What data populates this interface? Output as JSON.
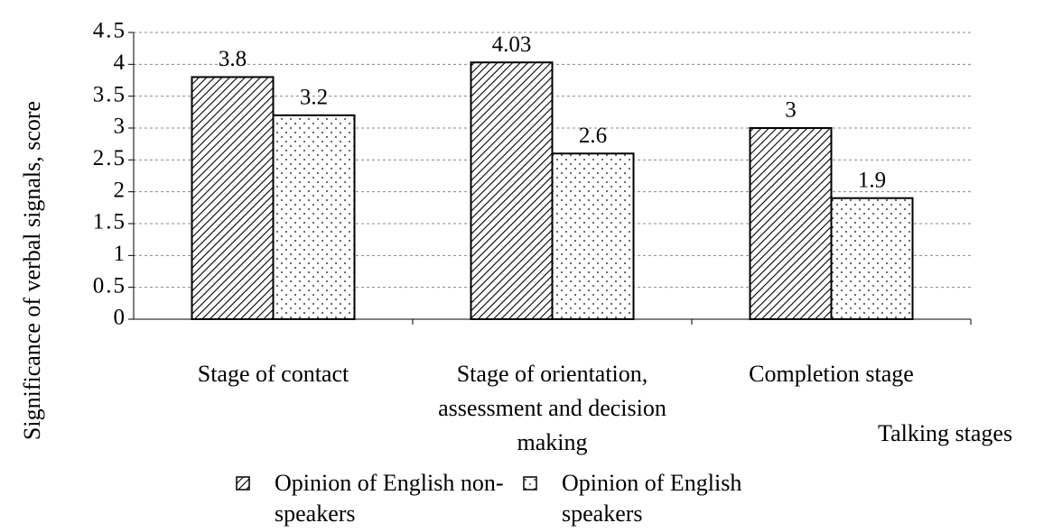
{
  "chart_data": {
    "type": "bar",
    "y_label": "Significance of verbal signals, score",
    "x_label": "Talking stages",
    "categories": [
      "Stage of contact",
      "Stage of orientation, assessment and decision making",
      "Completion stage"
    ],
    "series": [
      {
        "name": "Opinion of English non-speakers",
        "pattern": "hatch",
        "color": "#000000",
        "values": [
          3.8,
          4.03,
          3
        ]
      },
      {
        "name": "Opinion of English speakers",
        "pattern": "dots",
        "color": "#000000",
        "values": [
          3.2,
          2.6,
          1.9
        ]
      }
    ],
    "ylim": [
      0,
      4.5
    ],
    "yticks": [
      0,
      0.5,
      1,
      1.5,
      2,
      2.5,
      3,
      3.5,
      4,
      4.5
    ],
    "grid": true,
    "legend": "bottom"
  }
}
